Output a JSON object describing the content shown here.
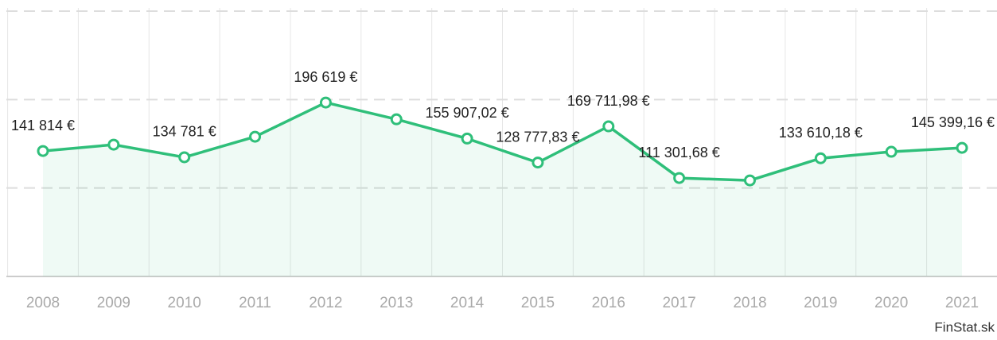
{
  "chart_data": {
    "type": "line",
    "categories": [
      "2008",
      "2009",
      "2010",
      "2011",
      "2012",
      "2013",
      "2014",
      "2015",
      "2016",
      "2017",
      "2018",
      "2019",
      "2020",
      "2021"
    ],
    "series": [
      {
        "name": null,
        "color": "#2fbf7a",
        "values": [
          141814,
          149000,
          134781,
          158000,
          196619,
          177700,
          155907.02,
          128777.83,
          169711.98,
          111301.68,
          108600,
          133610.18,
          141000,
          145399.16
        ],
        "value_labels": [
          "141 814 €",
          null,
          "134 781 €",
          null,
          "196 619 €",
          null,
          "155 907,02 €",
          "128 777,83 €",
          "169 711,98 €",
          "111 301,68 €",
          null,
          "133 610,18 €",
          null,
          "145 399,16 €"
        ]
      }
    ],
    "ylim": [
      0,
      300000
    ],
    "yticks": [
      0,
      100000,
      200000,
      300000
    ],
    "grid": true,
    "source": "FinStat.sk"
  }
}
